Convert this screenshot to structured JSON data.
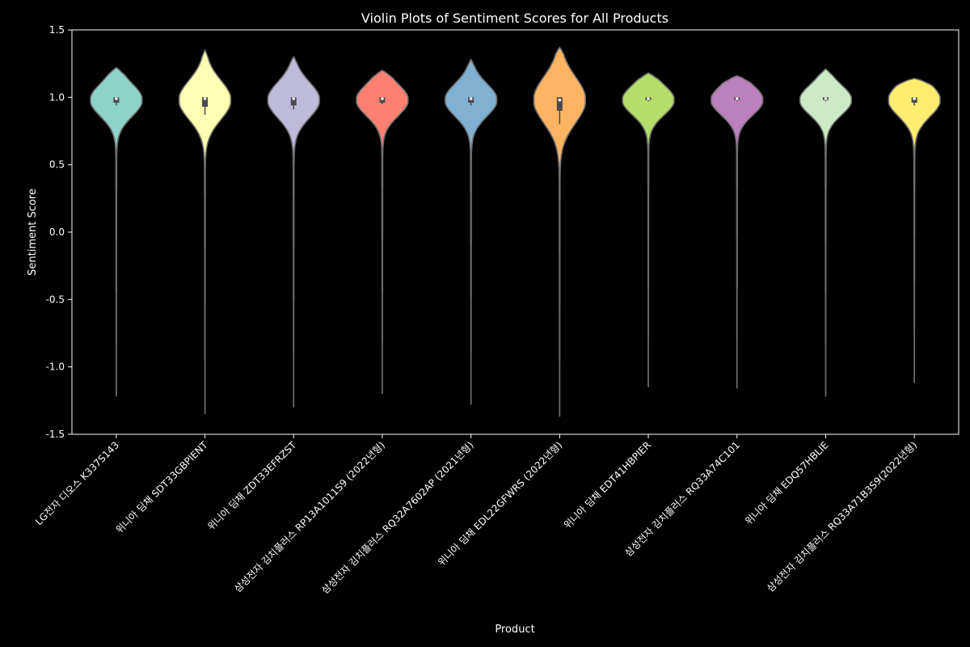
{
  "chart_data": {
    "type": "violin",
    "title": "Violin Plots of Sentiment Scores for All Products",
    "xlabel": "Product",
    "ylabel": "Sentiment Score",
    "ylim": [
      -1.5,
      1.5
    ],
    "yticks": [
      "-1.5",
      "-1.0",
      "-0.5",
      "0.0",
      "0.5",
      "1.0",
      "1.5"
    ],
    "grid": false,
    "categories": [
      "LG전자 디오스 K337S143",
      "위니아 딤채 SDT33GBPIENT",
      "위니아 딤채 ZDT33EFRZST",
      "삼성전자 김치플러스 RP13A1011S9 (2022년형)",
      "삼성전자 김치플러스 RQ32A7602AP (2021년형)",
      "위니아 딤채 EDL22GFWRS (2022년형)",
      "위니아 딤채 EDT41HBPIER",
      "삼성전자 김치플러스 RQ33A74C101",
      "위니아 딤채 EDQ57HBLIE",
      "삼성전자 김치플러스 RQ33A71B3S9(2022년형)"
    ],
    "series": [
      {
        "min": -1.22,
        "max": 1.22,
        "q1": 0.96,
        "median": 0.99,
        "q3": 1.0,
        "whisker_low": 0.94,
        "colors": [
          "#8dd3c7"
        ]
      },
      {
        "min": -1.35,
        "max": 1.35,
        "q1": 0.93,
        "median": 0.99,
        "q3": 1.0,
        "whisker_low": 0.87,
        "colors": [
          "#ffffb3"
        ]
      },
      {
        "min": -1.3,
        "max": 1.3,
        "q1": 0.94,
        "median": 0.99,
        "q3": 1.0,
        "whisker_low": 0.91,
        "colors": [
          "#bebada"
        ]
      },
      {
        "min": -1.2,
        "max": 1.2,
        "q1": 0.96,
        "median": 0.99,
        "q3": 1.0,
        "whisker_low": 0.95,
        "colors": [
          "#fb8072"
        ]
      },
      {
        "min": -1.28,
        "max": 1.28,
        "q1": 0.96,
        "median": 0.99,
        "q3": 1.0,
        "whisker_low": 0.94,
        "colors": [
          "#80b1d3"
        ]
      },
      {
        "min": -1.37,
        "max": 1.37,
        "q1": 0.9,
        "median": 0.98,
        "q3": 1.0,
        "whisker_low": 0.8,
        "colors": [
          "#fdb462"
        ]
      },
      {
        "min": -1.15,
        "max": 1.18,
        "q1": 0.98,
        "median": 0.99,
        "q3": 1.0,
        "whisker_low": 0.97,
        "colors": [
          "#b3de69"
        ]
      },
      {
        "min": -1.16,
        "max": 1.16,
        "q1": 0.98,
        "median": 0.99,
        "q3": 1.0,
        "whisker_low": 0.97,
        "colors": [
          "#bc80bd"
        ]
      },
      {
        "min": -1.22,
        "max": 1.21,
        "q1": 0.98,
        "median": 0.99,
        "q3": 1.0,
        "whisker_low": 0.97,
        "colors": [
          "#ccebc5"
        ]
      },
      {
        "min": -1.12,
        "max": 1.14,
        "q1": 0.96,
        "median": 0.99,
        "q3": 1.0,
        "whisker_low": 0.94,
        "colors": [
          "#ffed6f"
        ]
      }
    ]
  }
}
